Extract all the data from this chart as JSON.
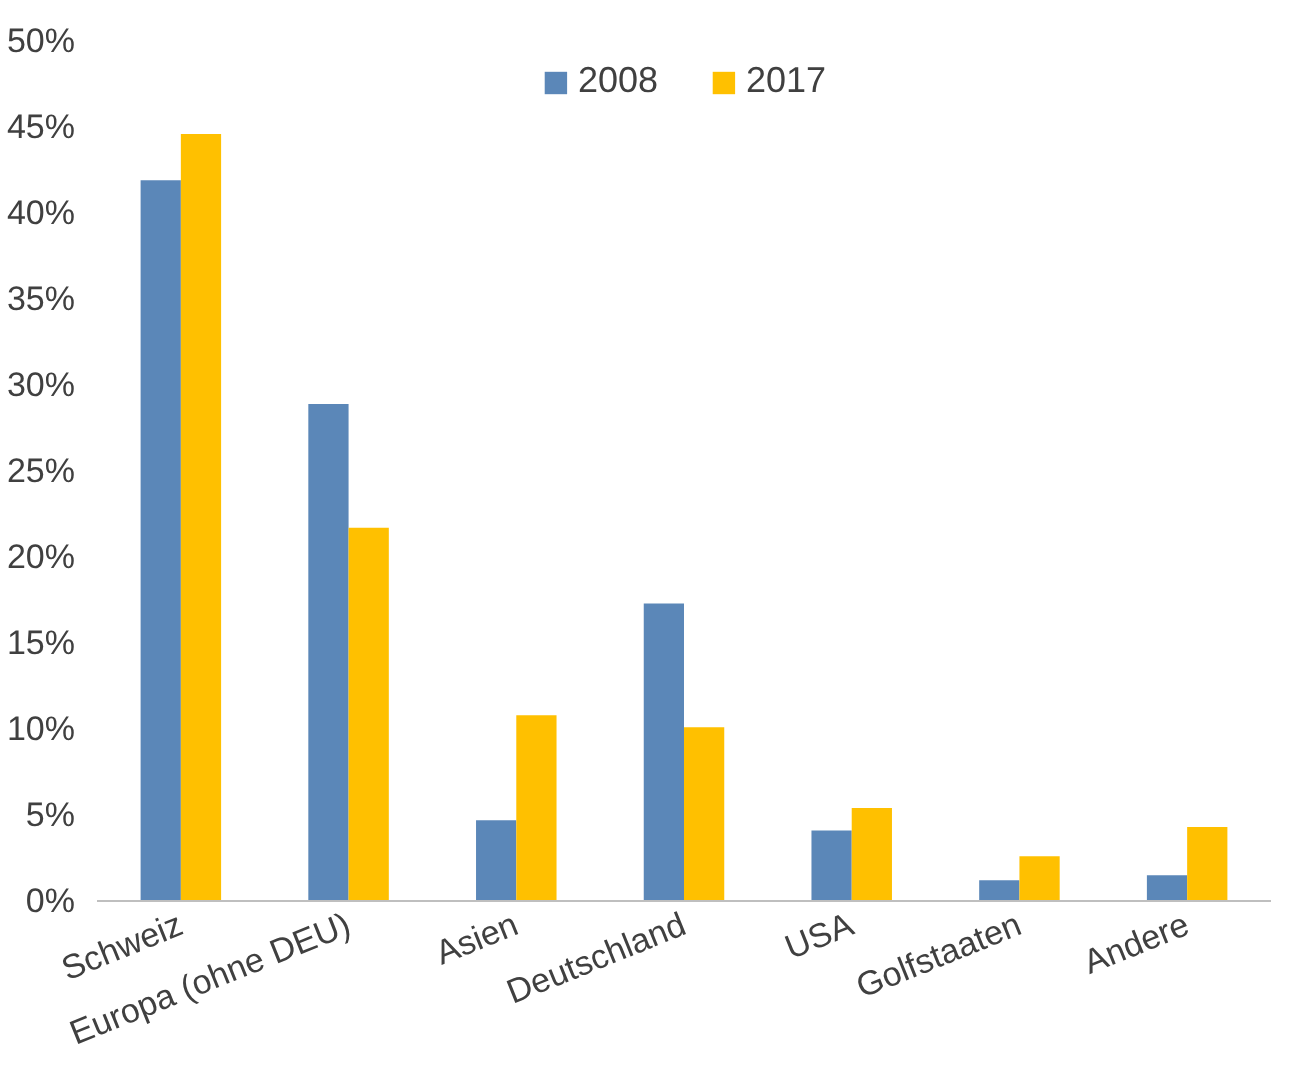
{
  "chart_data": {
    "type": "bar",
    "categories": [
      "Schweiz",
      "Europa (ohne DEU)",
      "Asien",
      "Deutschland",
      "USA",
      "Golfstaaten",
      "Andere"
    ],
    "series": [
      {
        "name": "2008",
        "color": "#5b87b8",
        "values": [
          41.9,
          28.9,
          4.7,
          17.3,
          4.1,
          1.2,
          1.5
        ]
      },
      {
        "name": "2017",
        "color": "#ffc000",
        "values": [
          44.6,
          21.7,
          10.8,
          10.1,
          5.4,
          2.6,
          4.3
        ]
      }
    ],
    "ylim": [
      0,
      50
    ],
    "yticks": [
      {
        "value": 0,
        "label": "0%"
      },
      {
        "value": 5,
        "label": "5%"
      },
      {
        "value": 10,
        "label": "10%"
      },
      {
        "value": 15,
        "label": "15%"
      },
      {
        "value": 20,
        "label": "20%"
      },
      {
        "value": 25,
        "label": "25%"
      },
      {
        "value": 30,
        "label": "30%"
      },
      {
        "value": 35,
        "label": "35%"
      },
      {
        "value": 40,
        "label": "40%"
      },
      {
        "value": 45,
        "label": "45%"
      },
      {
        "value": 50,
        "label": "50%"
      }
    ],
    "grid": false,
    "legend": "top"
  }
}
